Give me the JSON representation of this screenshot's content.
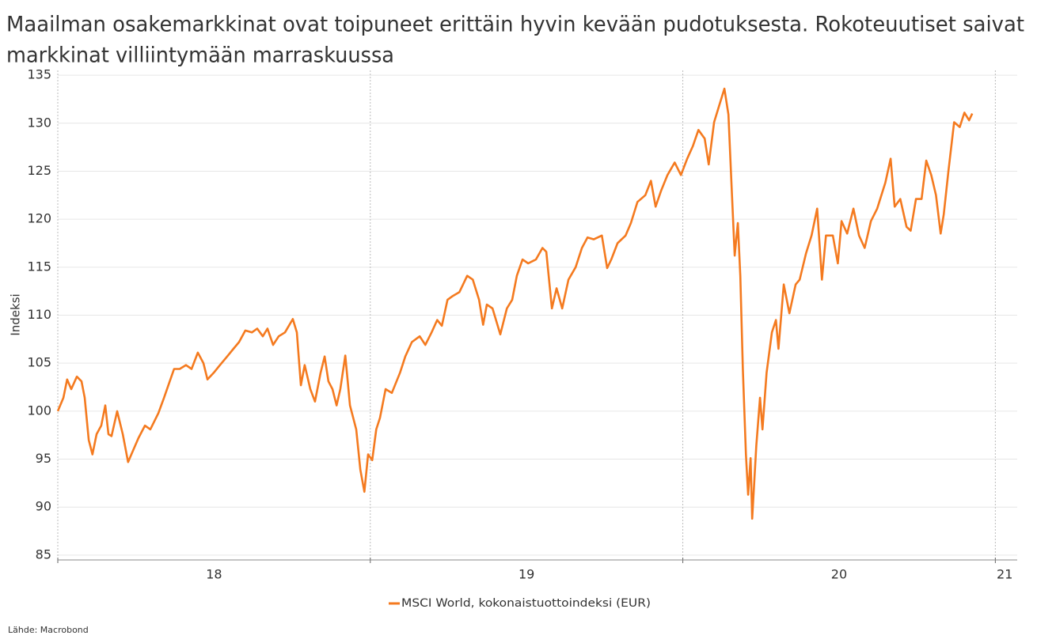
{
  "chart_data": {
    "type": "line",
    "title": [
      "Maailman osakemarkkinat ovat toipuneet erittäin hyvin kevään pudotuksesta. Rokoteuutiset saivat",
      "markkinat villiintymään marraskuussa"
    ],
    "y_label": "Indeksi",
    "source": "Lähde: Macrobond",
    "ylim": [
      84.5,
      135.5
    ],
    "yticks": [
      85,
      90,
      95,
      100,
      105,
      110,
      115,
      120,
      125,
      130,
      135
    ],
    "xlim": [
      2018,
      2021.07
    ],
    "xticks": [
      {
        "value": 2018.5,
        "label": "18"
      },
      {
        "value": 2019.5,
        "label": "19"
      },
      {
        "value": 2020.5,
        "label": "20"
      },
      {
        "value": 2021.03,
        "label": "21"
      }
    ],
    "xgrid": [
      2018,
      2019,
      2020,
      2021
    ],
    "grid": true,
    "legend": "bottom",
    "series": [
      {
        "name": "MSCI World, kokonaistuottoindeksi (EUR)",
        "color": "#f47a1f",
        "x": [
          2018.0,
          2018.018,
          2018.03,
          2018.043,
          2018.061,
          2018.076,
          2018.086,
          2018.099,
          2018.111,
          2018.124,
          2018.139,
          2018.152,
          2018.162,
          2018.172,
          2018.19,
          2018.208,
          2018.225,
          2018.238,
          2018.258,
          2018.279,
          2018.296,
          2018.322,
          2018.34,
          2018.355,
          2018.372,
          2018.39,
          2018.41,
          2018.428,
          2018.448,
          2018.466,
          2018.479,
          2018.499,
          2018.519,
          2018.542,
          2018.562,
          2018.58,
          2018.6,
          2018.621,
          2018.638,
          2018.656,
          2018.671,
          2018.689,
          2018.707,
          2018.727,
          2018.752,
          2018.765,
          2018.778,
          2018.79,
          2018.808,
          2018.823,
          2018.841,
          2018.854,
          2018.866,
          2018.879,
          2018.892,
          2018.904,
          2018.92,
          2018.935,
          2018.955,
          2018.968,
          2018.981,
          2018.993,
          2019.006,
          2019.019,
          2019.031,
          2019.049,
          2019.069,
          2019.095,
          2019.112,
          2019.133,
          2019.158,
          2019.176,
          2019.196,
          2019.214,
          2019.229,
          2019.247,
          2019.264,
          2019.285,
          2019.31,
          2019.328,
          2019.348,
          2019.361,
          2019.373,
          2019.391,
          2019.416,
          2019.437,
          2019.454,
          2019.469,
          2019.487,
          2019.505,
          2019.53,
          2019.551,
          2019.563,
          2019.581,
          2019.596,
          2019.614,
          2019.634,
          2019.657,
          2019.677,
          2019.695,
          2019.715,
          2019.741,
          2019.758,
          2019.771,
          2019.791,
          2019.817,
          2019.834,
          2019.855,
          2019.88,
          2019.898,
          2019.913,
          2019.931,
          2019.951,
          2019.974,
          2019.994,
          2020.014,
          2020.032,
          2020.05,
          2020.07,
          2020.083,
          2020.1,
          2020.116,
          2020.133,
          2020.146,
          2020.156,
          2020.166,
          2020.176,
          2020.184,
          2020.192,
          2020.202,
          2020.209,
          2020.217,
          2020.222,
          2020.235,
          2020.247,
          2020.255,
          2020.268,
          2020.285,
          2020.298,
          2020.306,
          2020.323,
          2020.341,
          2020.361,
          2020.374,
          2020.394,
          2020.412,
          2020.43,
          2020.445,
          2020.458,
          2020.48,
          2020.496,
          2020.508,
          2020.526,
          2020.546,
          2020.564,
          2020.582,
          2020.602,
          2020.622,
          2020.648,
          2020.665,
          2020.678,
          2020.696,
          2020.716,
          2020.729,
          2020.746,
          2020.764,
          2020.779,
          2020.795,
          2020.81,
          2020.825,
          2020.835,
          2020.85,
          2020.868,
          2020.886,
          2020.901,
          2020.916,
          2020.926
        ],
        "values": [
          100.0,
          101.4,
          103.3,
          102.3,
          103.6,
          103.1,
          101.4,
          97.0,
          95.5,
          97.6,
          98.5,
          100.6,
          97.6,
          97.4,
          100.0,
          97.6,
          94.7,
          95.7,
          97.2,
          98.5,
          98.1,
          99.8,
          101.4,
          102.8,
          104.4,
          104.4,
          104.8,
          104.4,
          106.1,
          105.0,
          103.3,
          104.0,
          104.8,
          105.7,
          106.5,
          107.2,
          108.4,
          108.2,
          108.6,
          107.8,
          108.6,
          106.9,
          107.8,
          108.2,
          109.6,
          108.2,
          102.7,
          104.8,
          102.3,
          101.0,
          104.0,
          105.7,
          103.1,
          102.3,
          100.6,
          102.3,
          105.8,
          100.6,
          98.1,
          93.9,
          91.6,
          95.5,
          94.9,
          98.1,
          99.3,
          102.3,
          101.9,
          104.0,
          105.7,
          107.2,
          107.8,
          106.9,
          108.2,
          109.5,
          108.9,
          111.6,
          112.0,
          112.4,
          114.1,
          113.7,
          111.6,
          109.0,
          111.1,
          110.7,
          108.0,
          110.7,
          111.6,
          114.1,
          115.8,
          115.4,
          115.8,
          117.0,
          116.6,
          110.7,
          112.8,
          110.7,
          113.7,
          115.0,
          117.0,
          118.1,
          117.9,
          118.3,
          114.9,
          115.8,
          117.5,
          118.3,
          119.6,
          121.8,
          122.5,
          124.0,
          121.3,
          123.0,
          124.6,
          125.9,
          124.6,
          126.3,
          127.6,
          129.3,
          128.4,
          125.7,
          130.1,
          131.8,
          133.6,
          130.9,
          123.4,
          116.2,
          119.6,
          114.1,
          104.4,
          95.5,
          91.3,
          95.1,
          88.8,
          96.4,
          101.4,
          98.1,
          104.0,
          108.2,
          109.5,
          106.5,
          113.2,
          110.2,
          113.2,
          113.7,
          116.4,
          118.3,
          121.1,
          113.7,
          118.3,
          118.3,
          115.4,
          119.8,
          118.5,
          121.1,
          118.3,
          117.0,
          119.8,
          121.1,
          123.8,
          126.3,
          121.3,
          122.1,
          119.2,
          118.8,
          122.1,
          122.1,
          126.1,
          124.6,
          122.5,
          118.5,
          120.5,
          125.0,
          130.1,
          129.6,
          131.1,
          130.3,
          131.0
        ]
      }
    ]
  }
}
